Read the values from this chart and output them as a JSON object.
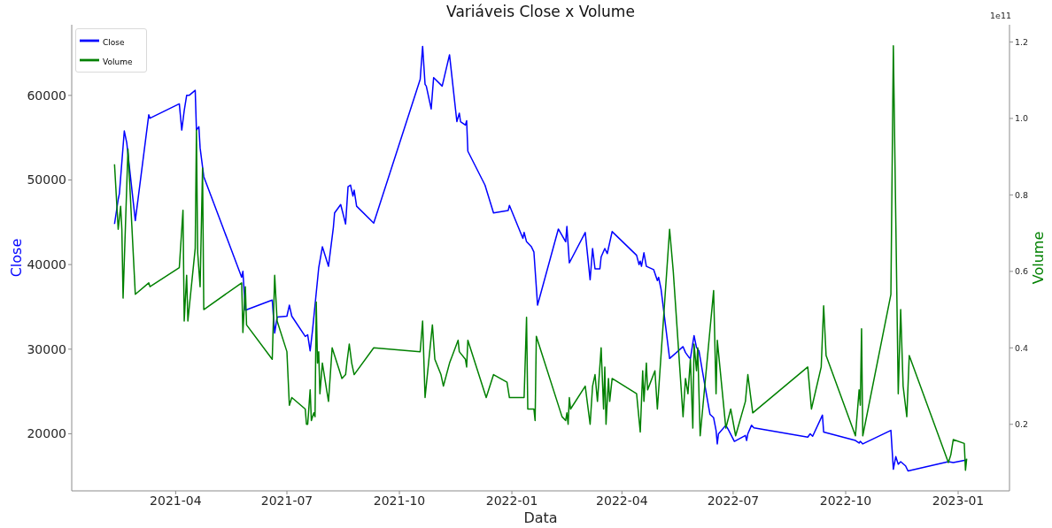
{
  "chart_data": {
    "type": "line",
    "title": "Variáveis Close x Volume",
    "xlabel": "Data",
    "ylabel": "Close",
    "y2label": "Volume",
    "annotations": [
      "1e11"
    ],
    "legend": "top left",
    "xlim": [
      "2021-01-06",
      "2023-02-12"
    ],
    "xticks": [
      "2021-04",
      "2021-07",
      "2021-10",
      "2022-01",
      "2022-04",
      "2022-07",
      "2022-10",
      "2023-01"
    ],
    "ylim": [
      13250,
      68350
    ],
    "yticks": [
      20000,
      30000,
      40000,
      50000,
      60000
    ],
    "y2lim": [
      0.026,
      1.245
    ],
    "y2ticks": [
      0.2,
      0.4,
      0.6,
      0.8,
      {
        "value": 1,
        "label": "1.0"
      },
      1.2
    ],
    "series": [
      {
        "name": "Close",
        "color": "#0000ff",
        "x": [
          "2021-02-10",
          "2021-02-13",
          "2021-02-14",
          "2021-02-18",
          "2021-02-20",
          "2021-02-27",
          "2021-03-10",
          "2021-03-11",
          "2021-04-04",
          "2021-04-06",
          "2021-04-08",
          "2021-04-10",
          "2021-04-12",
          "2021-04-17",
          "2021-04-18",
          "2021-04-20",
          "2021-04-21",
          "2021-04-24",
          "2021-05-25",
          "2021-05-26",
          "2021-05-28",
          "2021-06-19",
          "2021-06-21",
          "2021-06-23",
          "2021-07-01",
          "2021-07-03",
          "2021-07-05",
          "2021-07-16",
          "2021-07-18",
          "2021-07-20",
          "2021-07-22",
          "2021-07-27",
          "2021-07-30",
          "2021-08-04",
          "2021-08-08",
          "2021-08-09",
          "2021-08-14",
          "2021-08-18",
          "2021-08-20",
          "2021-08-22",
          "2021-08-24",
          "2021-08-25",
          "2021-08-27",
          "2021-09-10",
          "2021-10-18",
          "2021-10-20",
          "2021-10-22",
          "2021-10-23",
          "2021-10-27",
          "2021-10-29",
          "2021-11-05",
          "2021-11-11",
          "2021-11-17",
          "2021-11-19",
          "2021-11-20",
          "2021-11-24",
          "2021-11-25",
          "2021-11-26",
          "2021-12-10",
          "2021-12-17",
          "2021-12-29",
          "2021-12-30",
          "2022-01-10",
          "2022-01-11",
          "2022-01-13",
          "2022-01-17",
          "2022-01-19",
          "2022-01-22",
          "2022-02-08",
          "2022-02-14",
          "2022-02-15",
          "2022-02-17",
          "2022-03-02",
          "2022-03-06",
          "2022-03-08",
          "2022-03-10",
          "2022-03-14",
          "2022-03-15",
          "2022-03-18",
          "2022-03-20",
          "2022-03-24",
          "2022-04-13",
          "2022-04-15",
          "2022-04-16",
          "2022-04-17",
          "2022-04-19",
          "2022-04-21",
          "2022-04-27",
          "2022-04-30",
          "2022-05-01",
          "2022-05-03",
          "2022-05-10",
          "2022-05-21",
          "2022-05-23",
          "2022-05-26",
          "2022-05-27",
          "2022-05-30",
          "2022-06-01",
          "2022-06-03",
          "2022-06-08",
          "2022-06-12",
          "2022-06-15",
          "2022-06-17",
          "2022-06-18",
          "2022-06-19",
          "2022-06-25",
          "2022-06-27",
          "2022-07-02",
          "2022-07-11",
          "2022-07-12",
          "2022-07-13",
          "2022-07-16",
          "2022-07-18",
          "2022-08-31",
          "2022-09-02",
          "2022-09-04",
          "2022-09-12",
          "2022-09-13",
          "2022-10-09",
          "2022-10-12",
          "2022-10-13",
          "2022-10-15",
          "2022-11-07",
          "2022-11-09",
          "2022-11-11",
          "2022-11-13",
          "2022-11-15",
          "2022-11-19",
          "2022-11-21",
          "2022-12-24",
          "2022-12-28",
          "2023-01-08"
        ],
        "values": [
          44800,
          47700,
          48400,
          55800,
          54400,
          45200,
          57700,
          57300,
          59000,
          55900,
          58200,
          60000,
          60000,
          60600,
          55900,
          56300,
          53800,
          50400,
          38500,
          39200,
          34600,
          35800,
          31900,
          33800,
          33900,
          35200,
          33900,
          31500,
          31700,
          29800,
          32300,
          39600,
          42100,
          39800,
          44400,
          46100,
          47100,
          44800,
          49200,
          49400,
          48100,
          48800,
          46900,
          44900,
          61900,
          65800,
          61300,
          61100,
          58400,
          62100,
          61100,
          64800,
          56900,
          57900,
          56900,
          56500,
          57000,
          53400,
          49400,
          46100,
          46400,
          47000,
          43100,
          43800,
          42700,
          42100,
          41500,
          35200,
          44200,
          42700,
          44500,
          40200,
          43800,
          38200,
          41900,
          39500,
          39500,
          40900,
          41900,
          41300,
          43900,
          41100,
          40000,
          40400,
          39800,
          41400,
          39800,
          39400,
          38100,
          38500,
          37100,
          28900,
          30300,
          29600,
          29000,
          28900,
          31600,
          30200,
          29800,
          25600,
          22300,
          21900,
          20400,
          18800,
          20000,
          21000,
          20500,
          19100,
          19800,
          19200,
          20000,
          21000,
          20700,
          19600,
          20000,
          19700,
          22200,
          20200,
          19200,
          18900,
          19100,
          18800,
          20400,
          15800,
          17300,
          16400,
          16700,
          16200,
          15600,
          16700,
          16600,
          16900
        ]
      },
      {
        "name": "Volume",
        "color": "#008000",
        "axis": "y2",
        "x": [
          "2021-02-10",
          "2021-02-13",
          "2021-02-15",
          "2021-02-16",
          "2021-02-17",
          "2021-02-21",
          "2021-02-27",
          "2021-03-10",
          "2021-03-11",
          "2021-04-04",
          "2021-04-07",
          "2021-04-08",
          "2021-04-10",
          "2021-04-11",
          "2021-04-17",
          "2021-04-18",
          "2021-04-19",
          "2021-04-21",
          "2021-04-23",
          "2021-04-24",
          "2021-05-25",
          "2021-05-26",
          "2021-05-28",
          "2021-05-29",
          "2021-06-19",
          "2021-06-21",
          "2021-06-23",
          "2021-07-01",
          "2021-07-03",
          "2021-07-05",
          "2021-07-16",
          "2021-07-17",
          "2021-07-18",
          "2021-07-20",
          "2021-07-21",
          "2021-07-23",
          "2021-07-24",
          "2021-07-25",
          "2021-07-26",
          "2021-07-27",
          "2021-07-28",
          "2021-07-30",
          "2021-08-04",
          "2021-08-07",
          "2021-08-09",
          "2021-08-14",
          "2021-08-15",
          "2021-08-18",
          "2021-08-19",
          "2021-08-21",
          "2021-08-23",
          "2021-08-25",
          "2021-09-10",
          "2021-10-18",
          "2021-10-20",
          "2021-10-22",
          "2021-10-28",
          "2021-10-30",
          "2021-11-04",
          "2021-11-06",
          "2021-11-11",
          "2021-11-18",
          "2021-11-19",
          "2021-11-24",
          "2021-11-25",
          "2021-11-26",
          "2021-12-11",
          "2021-12-17",
          "2021-12-28",
          "2021-12-30",
          "2022-01-11",
          "2022-01-13",
          "2022-01-14",
          "2022-01-19",
          "2022-01-20",
          "2022-01-21",
          "2022-01-23",
          "2022-02-11",
          "2022-02-14",
          "2022-02-15",
          "2022-02-16",
          "2022-02-17",
          "2022-02-18",
          "2022-03-02",
          "2022-03-06",
          "2022-03-08",
          "2022-03-10",
          "2022-03-12",
          "2022-03-15",
          "2022-03-17",
          "2022-03-18",
          "2022-03-19",
          "2022-03-21",
          "2022-03-22",
          "2022-03-24",
          "2022-04-13",
          "2022-04-16",
          "2022-04-18",
          "2022-04-19",
          "2022-04-21",
          "2022-04-22",
          "2022-04-28",
          "2022-04-30",
          "2022-05-10",
          "2022-05-13",
          "2022-05-21",
          "2022-05-23",
          "2022-05-25",
          "2022-05-27",
          "2022-05-29",
          "2022-05-30",
          "2022-06-01",
          "2022-06-02",
          "2022-06-04",
          "2022-06-15",
          "2022-06-17",
          "2022-06-18",
          "2022-06-25",
          "2022-06-29",
          "2022-07-03",
          "2022-07-11",
          "2022-07-13",
          "2022-07-17",
          "2022-08-31",
          "2022-09-03",
          "2022-09-11",
          "2022-09-13",
          "2022-09-15",
          "2022-10-09",
          "2022-10-12",
          "2022-10-13",
          "2022-10-14",
          "2022-10-15",
          "2022-11-07",
          "2022-11-09",
          "2022-11-13",
          "2022-11-15",
          "2022-11-17",
          "2022-11-20",
          "2022-11-22",
          "2022-12-24",
          "2022-12-26",
          "2022-12-28",
          "2023-01-06",
          "2023-01-07",
          "2023-01-08"
        ],
        "values": [
          0.88,
          0.71,
          0.77,
          0.71,
          0.53,
          0.92,
          0.54,
          0.57,
          0.56,
          0.61,
          0.76,
          0.47,
          0.59,
          0.47,
          0.66,
          0.97,
          0.65,
          0.56,
          0.87,
          0.5,
          0.57,
          0.44,
          0.56,
          0.46,
          0.37,
          0.59,
          0.47,
          0.39,
          0.25,
          0.27,
          0.24,
          0.2,
          0.2,
          0.29,
          0.21,
          0.23,
          0.22,
          0.52,
          0.36,
          0.39,
          0.28,
          0.36,
          0.26,
          0.4,
          0.38,
          0.33,
          0.32,
          0.33,
          0.36,
          0.41,
          0.36,
          0.33,
          0.4,
          0.39,
          0.47,
          0.27,
          0.46,
          0.37,
          0.33,
          0.3,
          0.36,
          0.42,
          0.39,
          0.37,
          0.35,
          0.42,
          0.27,
          0.33,
          0.31,
          0.27,
          0.27,
          0.48,
          0.24,
          0.24,
          0.21,
          0.43,
          0.41,
          0.22,
          0.21,
          0.23,
          0.2,
          0.27,
          0.24,
          0.3,
          0.2,
          0.3,
          0.33,
          0.26,
          0.4,
          0.24,
          0.35,
          0.2,
          0.32,
          0.26,
          0.32,
          0.28,
          0.18,
          0.34,
          0.26,
          0.36,
          0.29,
          0.34,
          0.24,
          0.71,
          0.6,
          0.22,
          0.32,
          0.28,
          0.37,
          0.19,
          0.41,
          0.34,
          0.4,
          0.17,
          0.55,
          0.28,
          0.42,
          0.19,
          0.24,
          0.17,
          0.26,
          0.33,
          0.23,
          0.35,
          0.24,
          0.35,
          0.51,
          0.38,
          0.17,
          0.29,
          0.25,
          0.45,
          0.17,
          0.54,
          1.19,
          0.28,
          0.5,
          0.3,
          0.22,
          0.38,
          0.1,
          0.12,
          0.16,
          0.15,
          0.08,
          0.11
        ]
      }
    ]
  }
}
